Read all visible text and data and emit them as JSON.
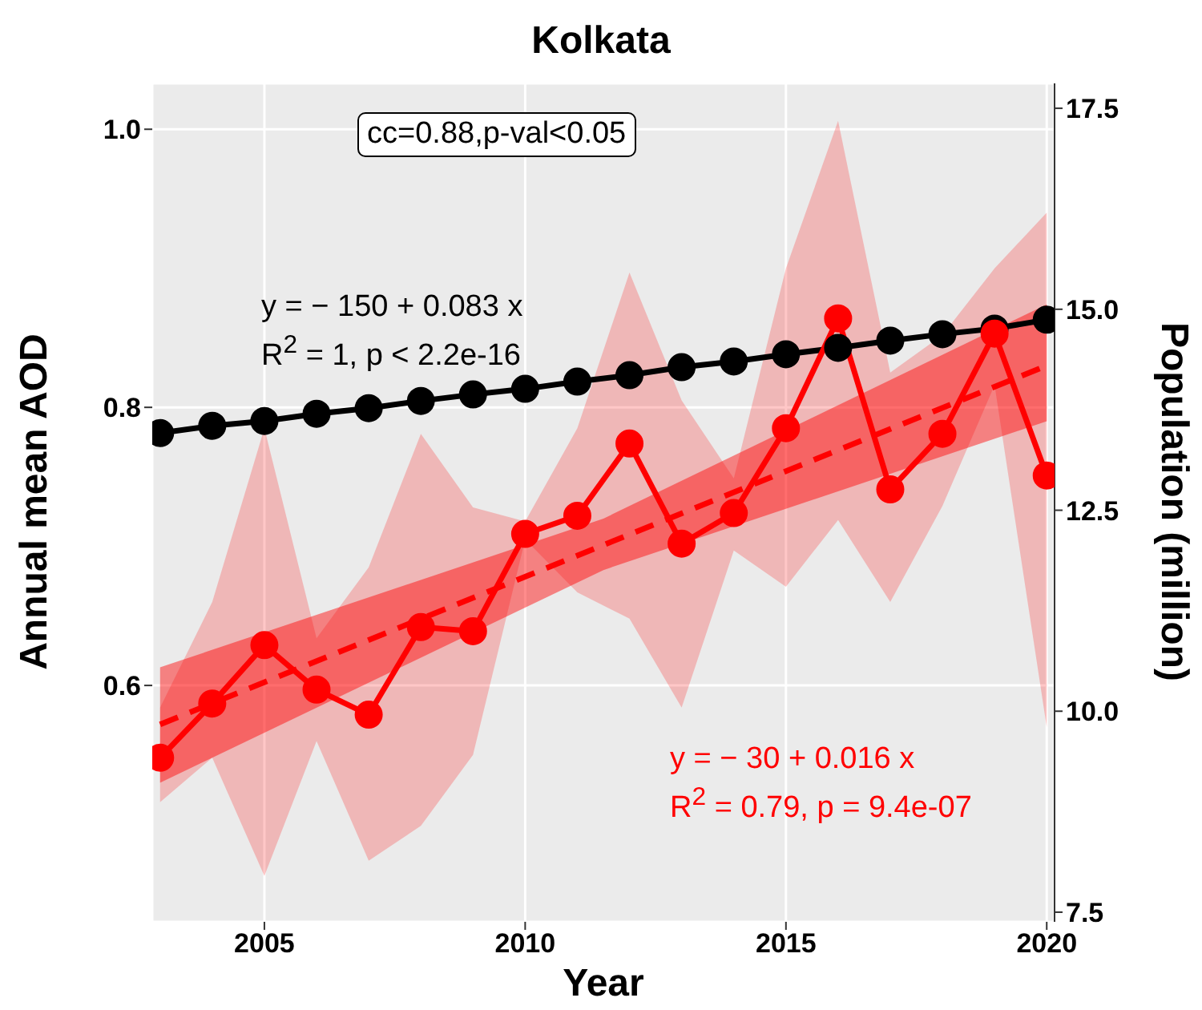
{
  "chart_data": {
    "type": "line",
    "title": "Kolkata",
    "xlabel": "Year",
    "ylabel": "Annual mean AOD",
    "y2label": "Population (million)",
    "x": [
      2003,
      2004,
      2005,
      2006,
      2007,
      2008,
      2009,
      2010,
      2011,
      2012,
      2013,
      2014,
      2015,
      2016,
      2017,
      2018,
      2019,
      2020
    ],
    "series": [
      {
        "color": "#ff0000",
        "values": [
          0.548,
          0.587,
          0.629,
          0.597,
          0.579,
          0.642,
          0.639,
          0.709,
          0.722,
          0.774,
          0.702,
          0.724,
          0.785,
          0.864,
          0.741,
          0.781,
          0.853,
          0.751
        ],
        "lower": [
          0.516,
          0.548,
          0.463,
          0.56,
          0.474,
          0.499,
          0.55,
          0.705,
          0.667,
          0.648,
          0.584,
          0.697,
          0.671,
          0.719,
          0.66,
          0.729,
          0.816,
          0.57
        ],
        "upper": [
          0.584,
          0.66,
          0.785,
          0.634,
          0.685,
          0.781,
          0.728,
          0.718,
          0.785,
          0.897,
          0.805,
          0.749,
          0.9,
          1.006,
          0.825,
          0.852,
          0.9,
          0.94
        ]
      },
      {
        "type": "line",
        "color": "#ff0000",
        "line_style": "dashed",
        "marker": "none",
        "x": [
          2003,
          2011.5,
          2020
        ],
        "values": [
          0.572,
          0.701,
          0.83
        ],
        "lower": [
          0.53,
          0.683,
          0.79
        ],
        "upper": [
          0.613,
          0.72,
          0.874
        ]
      },
      {
        "color": "#000000",
        "axis": "y2",
        "values": [
          13.46,
          13.55,
          13.61,
          13.7,
          13.77,
          13.86,
          13.94,
          14.01,
          14.1,
          14.18,
          14.28,
          14.35,
          14.44,
          14.52,
          14.61,
          14.69,
          14.76,
          14.87
        ]
      }
    ],
    "xlim": [
      2002.85,
      2020.15
    ],
    "xticks": [
      2005,
      2010,
      2015,
      2020
    ],
    "ylim": [
      0.43,
      1.033
    ],
    "yticks": [
      0.6,
      0.8,
      {
        "value": 1.0,
        "label": "1.0"
      }
    ],
    "y2lim": [
      7.38,
      17.81
    ],
    "y2ticks": [
      7.5,
      {
        "value": 10,
        "label": "10.0"
      },
      12.5,
      {
        "value": 15,
        "label": "15.0"
      },
      17.5
    ],
    "annotations": [
      "cc=0.88,p-val<0.05",
      "y = − 150 + 0.083 x\nR$^{2}$ = 1, p < 2.2e-16",
      "y = − 30 + 0.016 x\nR$^{2}$ = 0.79, p = 9.4e-07"
    ],
    "grid": true,
    "marker": "circle",
    "line_style": "solid",
    "legend": false
  }
}
